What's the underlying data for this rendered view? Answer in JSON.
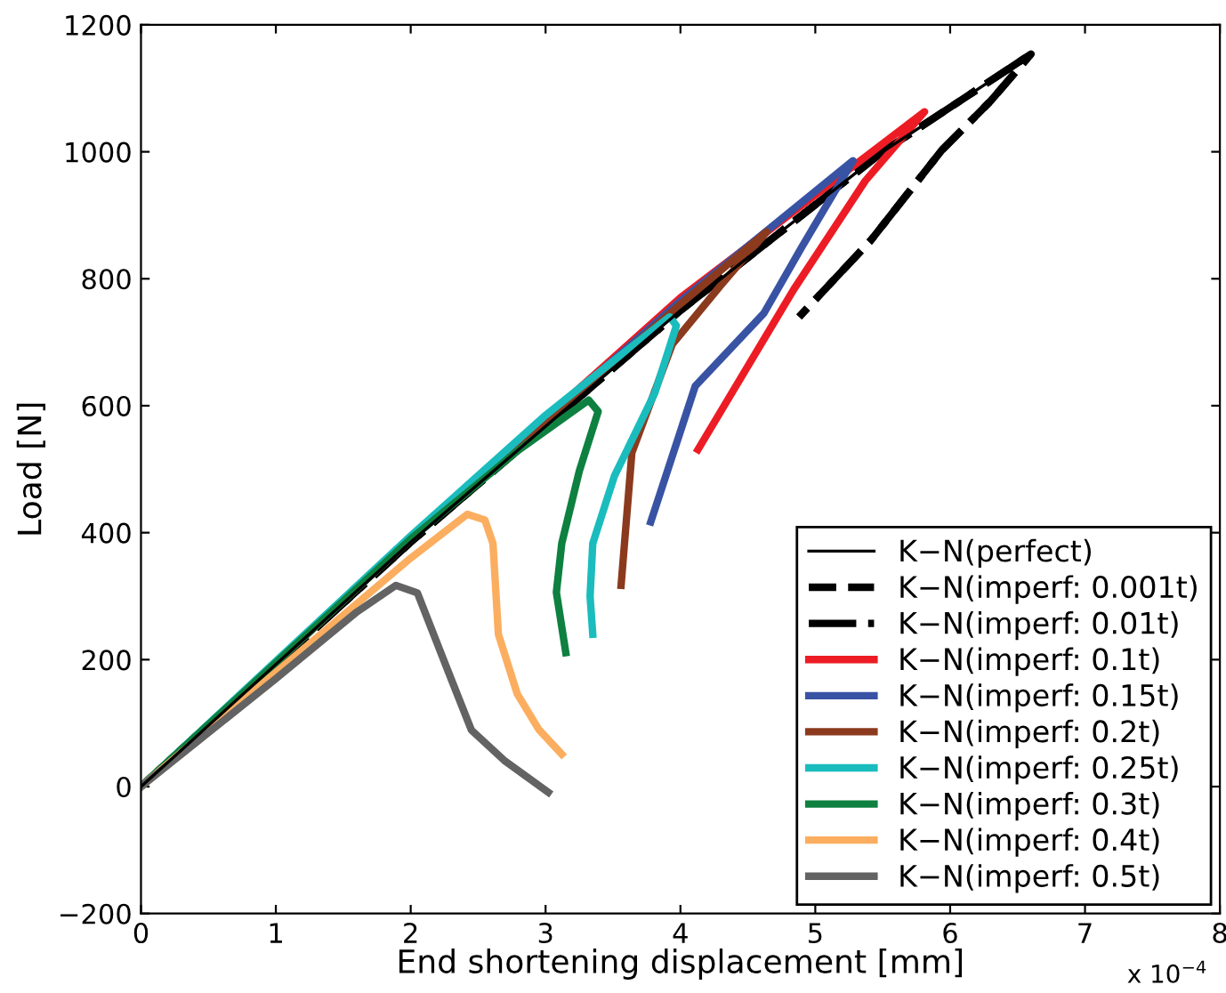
{
  "chart_data": {
    "type": "line",
    "xlabel": "End shortening displacement [mm]",
    "ylabel": "Load [N]",
    "xlim": [
      0,
      8
    ],
    "xticks": [
      0,
      1,
      2,
      3,
      4,
      5,
      6,
      7,
      8
    ],
    "ylim": [
      -200,
      1200
    ],
    "yticks": [
      {
        "value": -200,
        "label": "−200"
      },
      0,
      200,
      400,
      600,
      800,
      1000,
      1200
    ],
    "grid": false,
    "legend": "bottom right",
    "marker": "none",
    "annotations": [
      "x 10$^{−4}$"
    ],
    "series": [
      {
        "name": "K−N(perfect)",
        "color": "#000000",
        "line_style": "solid",
        "x": [
          0,
          2,
          4,
          5.5,
          6.6
        ],
        "values": [
          0,
          385,
          750,
          1000,
          1154
        ]
      },
      {
        "name": "K−N(imperf: 0.001t)",
        "color": "#000000",
        "line_style": "dashed",
        "x": [
          0,
          2,
          4,
          5.5,
          6.6,
          6.3,
          5.94,
          5.41,
          4.88
        ],
        "values": [
          0,
          385,
          750,
          1000,
          1154,
          1080,
          1003,
          860,
          740
        ]
      },
      {
        "name": "K−N(imperf: 0.01t)",
        "color": "#000000",
        "line_style": "dashdot",
        "x": [
          0,
          2,
          4,
          5.5,
          6.6,
          6.3,
          5.94,
          5.41,
          4.88
        ],
        "values": [
          0,
          385,
          750,
          1000,
          1154,
          1080,
          1003,
          860,
          740
        ]
      },
      {
        "name": "K−N(imperf: 0.1t)",
        "color": "#ed1c24",
        "line_style": "solid",
        "x": [
          0,
          2,
          4,
          5.81,
          5.37,
          4.84,
          4.13
        ],
        "values": [
          0,
          390,
          770,
          1063,
          954,
          783,
          531
        ]
      },
      {
        "name": "K−N(imperf: 0.15t)",
        "color": "#3953a4",
        "line_style": "solid",
        "x": [
          0,
          2,
          4,
          5.28,
          4.9,
          4.62,
          4.11,
          3.78
        ],
        "values": [
          0,
          390,
          765,
          986,
          850,
          746,
          631,
          417
        ]
      },
      {
        "name": "K−N(imperf: 0.2t)",
        "color": "#8b3a1e",
        "line_style": "solid",
        "x": [
          0,
          2,
          4,
          4.64,
          4.3,
          3.94,
          3.64,
          3.56
        ],
        "values": [
          0,
          390,
          760,
          874,
          790,
          697,
          526,
          317
        ]
      },
      {
        "name": "K−N(imperf: 0.25t)",
        "color": "#1bbcbd",
        "line_style": "solid",
        "x": [
          0,
          2,
          3,
          3.5,
          3.92,
          3.97,
          3.81,
          3.51,
          3.35,
          3.33,
          3.35
        ],
        "values": [
          0,
          395,
          585,
          670,
          740,
          726,
          620,
          489,
          383,
          300,
          240
        ]
      },
      {
        "name": "K−N(imperf: 0.3t)",
        "color": "#0e8040",
        "line_style": "solid",
        "x": [
          0,
          2,
          2.8,
          3.32,
          3.39,
          3.25,
          3.12,
          3.08,
          3.15
        ],
        "values": [
          0,
          390,
          530,
          609,
          591,
          497,
          383,
          306,
          211
        ]
      },
      {
        "name": "K−N(imperf: 0.4t)",
        "color": "#fbae60",
        "line_style": "solid",
        "x": [
          0,
          1,
          2,
          2.42,
          2.55,
          2.61,
          2.65,
          2.79,
          2.95,
          3.12
        ],
        "values": [
          0,
          180,
          360,
          429,
          420,
          383,
          240,
          146,
          90,
          51
        ]
      },
      {
        "name": "K−N(imperf: 0.5t)",
        "color": "#636363",
        "line_style": "solid",
        "x": [
          0,
          1,
          1.6,
          1.89,
          2.05,
          2.26,
          2.45,
          2.7,
          3.02
        ],
        "values": [
          0,
          170,
          275,
          317,
          305,
          191,
          89,
          40,
          -9
        ]
      }
    ]
  }
}
